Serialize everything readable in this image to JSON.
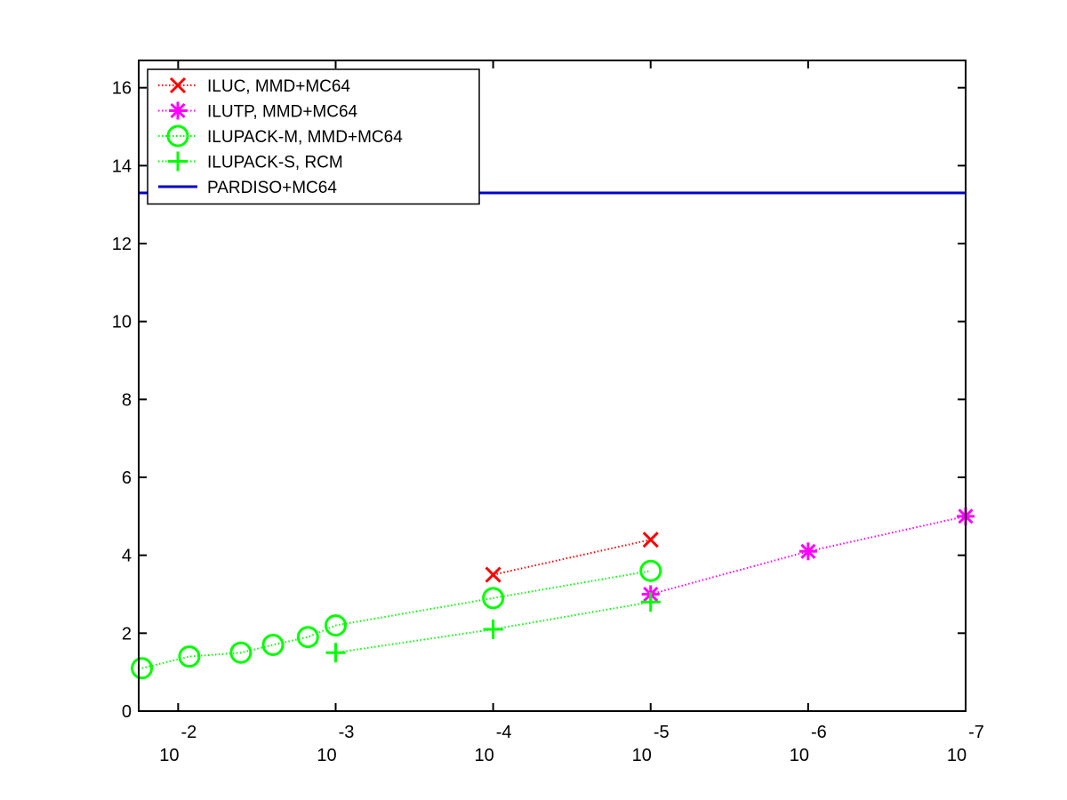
{
  "chart_data": {
    "type": "line",
    "x_scale": "log",
    "x_reversed": true,
    "xlim": [
      0.0178,
      1e-07
    ],
    "ylim": [
      0,
      16.7
    ],
    "x_ticks": [
      {
        "value": 0.01,
        "base": "10",
        "exp": "-2"
      },
      {
        "value": 0.001,
        "base": "10",
        "exp": "-3"
      },
      {
        "value": 0.0001,
        "base": "10",
        "exp": "-4"
      },
      {
        "value": 1e-05,
        "base": "10",
        "exp": "-5"
      },
      {
        "value": 1e-06,
        "base": "10",
        "exp": "-6"
      },
      {
        "value": 1e-07,
        "base": "10",
        "exp": "-7"
      }
    ],
    "y_ticks": [
      {
        "value": 0,
        "label": "0"
      },
      {
        "value": 2,
        "label": "2"
      },
      {
        "value": 4,
        "label": "4"
      },
      {
        "value": 6,
        "label": "6"
      },
      {
        "value": 8,
        "label": "8"
      },
      {
        "value": 10,
        "label": "10"
      },
      {
        "value": 12,
        "label": "12"
      },
      {
        "value": 14,
        "label": "14"
      },
      {
        "value": 16,
        "label": "16"
      }
    ],
    "series": [
      {
        "name": "ILUC, MMD+MC64",
        "color": "#ff0000",
        "marker": "x",
        "linestyle": "dotted",
        "points": [
          [
            0.0001,
            3.5
          ],
          [
            1e-05,
            4.4
          ]
        ]
      },
      {
        "name": "ILUTP, MMD+MC64",
        "color": "#ff00ff",
        "marker": "asterisk",
        "linestyle": "dotted",
        "points": [
          [
            1e-05,
            3.0
          ],
          [
            1e-06,
            4.1
          ],
          [
            1e-07,
            5.0
          ]
        ]
      },
      {
        "name": "ILUPACK-M, MMD+MC64",
        "color": "#00ff00",
        "marker": "circle",
        "linestyle": "dotted",
        "points": [
          [
            0.017,
            1.1
          ],
          [
            0.0085,
            1.4
          ],
          [
            0.004,
            1.5
          ],
          [
            0.0025,
            1.7
          ],
          [
            0.0015,
            1.9
          ],
          [
            0.001,
            2.2
          ],
          [
            0.0001,
            2.9
          ],
          [
            1e-05,
            3.6
          ]
        ]
      },
      {
        "name": "ILUPACK-S, RCM",
        "color": "#00ff00",
        "marker": "plus",
        "linestyle": "dotted",
        "points": [
          [
            0.001,
            1.5
          ],
          [
            0.0001,
            2.1
          ],
          [
            1e-05,
            2.8
          ]
        ]
      },
      {
        "name": "PARDISO+MC64",
        "color": "#0000cc",
        "marker": "none",
        "linestyle": "solid",
        "points": [
          [
            0.0178,
            13.3
          ],
          [
            1e-07,
            13.3
          ]
        ]
      }
    ],
    "legend_position": "top-left",
    "grid": false
  }
}
